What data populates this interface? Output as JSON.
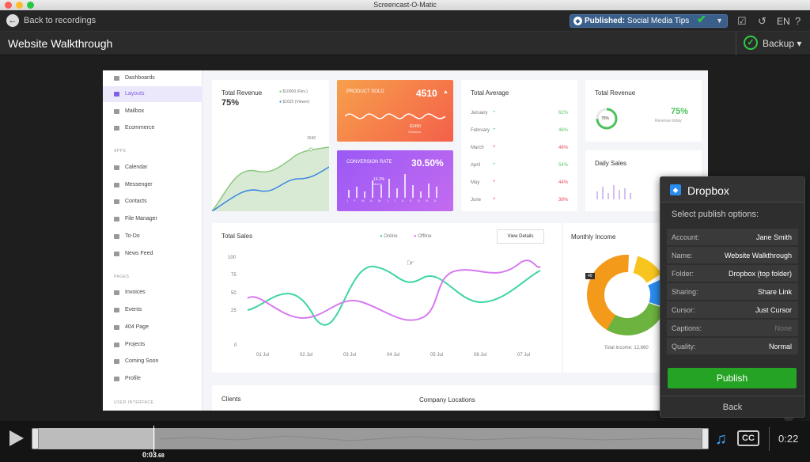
{
  "window": {
    "title": "Screencast-O-Matic"
  },
  "topbar": {
    "back_label": "Back to recordings",
    "published_prefix": "Published:",
    "published_name": "Social Media Tips",
    "language": "EN",
    "help": "?"
  },
  "header": {
    "title": "Website Walkthrough",
    "backup_label": "Backup"
  },
  "dashboard": {
    "sidebar": {
      "items_main": [
        "Dashboards",
        "Layouts",
        "Mailbox",
        "Ecommerce"
      ],
      "section_apps": "APPS",
      "items_apps": [
        "Calendar",
        "Messenger",
        "Contacts",
        "File Manager",
        "To-Do",
        "News Feed"
      ],
      "section_pages": "PAGES",
      "items_pages": [
        "Invoices",
        "Events",
        "404 Page",
        "Projects",
        "Coming Soon",
        "Profile"
      ],
      "section_ui": "USER INTERFACE"
    },
    "total_revenue": {
      "title": "Total Revenue",
      "percent": "75%",
      "legend1": "$10000 (Rev.)",
      "legend2": "$1625 (Viewer)",
      "peak": "1540"
    },
    "product_sold": {
      "title": "PRODUCT SOLD",
      "value": "4510",
      "tooltip_value": "$1450",
      "tooltip_label": "Sessions"
    },
    "conversion_rate": {
      "title": "CONVERSION RATE",
      "value": "30.50%",
      "tooltip_value": "14.2%",
      "tooltip_label": "March",
      "months": [
        "J",
        "F",
        "M",
        "A",
        "M",
        "J",
        "J",
        "A",
        "S",
        "O",
        "N",
        "D"
      ]
    },
    "total_average": {
      "title": "Total Average",
      "rows": [
        {
          "month": "January",
          "value": "62%",
          "up": true
        },
        {
          "month": "February",
          "value": "46%",
          "up": true
        },
        {
          "month": "March",
          "value": "46%",
          "up": false
        },
        {
          "month": "April",
          "value": "54%",
          "up": true
        },
        {
          "month": "May",
          "value": "44%",
          "up": false
        },
        {
          "month": "June",
          "value": "39%",
          "up": false
        }
      ]
    },
    "total_revenue2": {
      "title": "Total Revenue",
      "ring": "75%",
      "percent": "75%",
      "sub": "Revenue today"
    },
    "daily_sales": {
      "title": "Daily Sales"
    },
    "total_sales": {
      "title": "Total Sales",
      "legend_online": "Online",
      "legend_offline": "Offline",
      "view_details": "View Details",
      "y_ticks": [
        "100",
        "75",
        "50",
        "25",
        "0"
      ],
      "x_ticks": [
        "01 Jul",
        "02 Jul",
        "03 Jul",
        "04 Jul",
        "05 Jul",
        "06 Jul",
        "07 Jul"
      ]
    },
    "monthly_income": {
      "title": "Monthly Income",
      "badge": "49",
      "total": "Total Income: 12,660"
    },
    "clients": {
      "title": "Clients"
    },
    "company_locations": {
      "title": "Company Locations"
    }
  },
  "publish_panel": {
    "title": "Dropbox",
    "subtitle": "Select publish options:",
    "rows": [
      {
        "key": "Account:",
        "value": "Jane Smith"
      },
      {
        "key": "Name:",
        "value": "Website Walkthrough"
      },
      {
        "key": "Folder:",
        "value": "Dropbox (top folder)"
      },
      {
        "key": "Sharing:",
        "value": "Share Link"
      },
      {
        "key": "Cursor:",
        "value": "Just Cursor"
      },
      {
        "key": "Captions:",
        "value": "None"
      },
      {
        "key": "Quality:",
        "value": "Normal"
      }
    ],
    "publish_label": "Publish",
    "back_label": "Back"
  },
  "player": {
    "current_time": "0:03",
    "current_frac": ".68",
    "duration": "0:22",
    "cc_label": "CC",
    "progress_fraction": 0.18
  },
  "colors": {
    "accent_green": "#24a324",
    "accent_blue": "#3a5f8a",
    "layouts_purple": "#7d5fe0",
    "online": "#3ed6a0",
    "offline": "#d67af0"
  }
}
